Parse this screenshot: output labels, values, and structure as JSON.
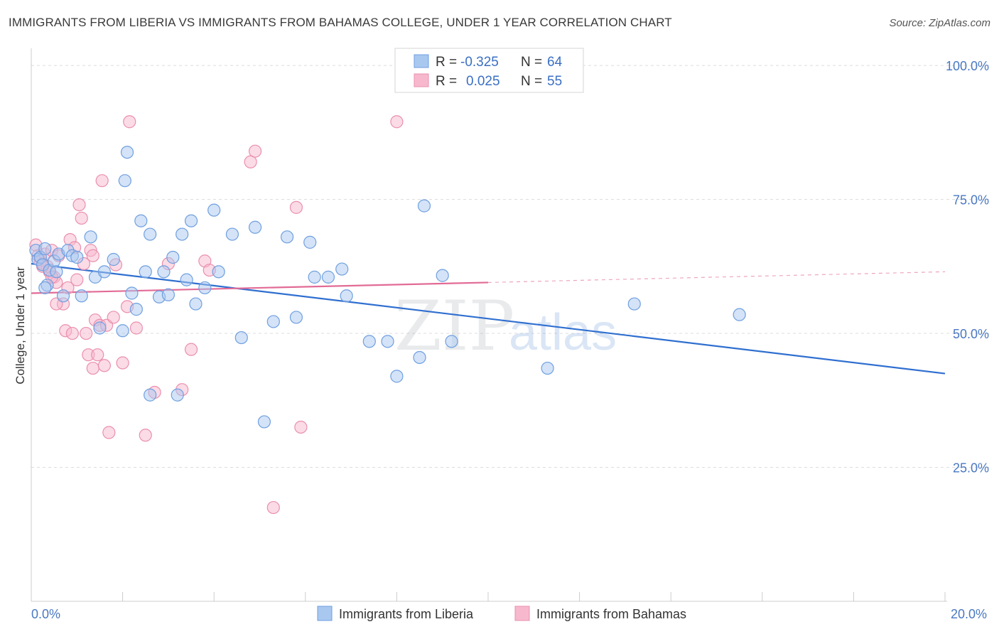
{
  "title": "IMMIGRANTS FROM LIBERIA VS IMMIGRANTS FROM BAHAMAS COLLEGE, UNDER 1 YEAR CORRELATION CHART",
  "source": "Source: ZipAtlas.com",
  "watermark": {
    "zip": "ZIP",
    "atlas": "atlas"
  },
  "colors": {
    "liberia_fill": "#a9c8f0",
    "liberia_stroke": "#6f9fe0",
    "liberia_line": "#2f6fd0",
    "bahamas_fill": "#f7b8cd",
    "bahamas_stroke": "#ea8fae",
    "bahamas_line": "#e26b96",
    "grid": "#dddddd",
    "axis_label": "#4a78c2"
  },
  "chart_data": {
    "type": "scatter",
    "title": "IMMIGRANTS FROM LIBERIA VS IMMIGRANTS FROM BAHAMAS COLLEGE, UNDER 1 YEAR CORRELATION CHART",
    "xlabel": "",
    "ylabel": "College, Under 1 year",
    "xlim": [
      0,
      20
    ],
    "ylim": [
      0,
      102
    ],
    "x_tick_labels": [
      "0.0%",
      "20.0%"
    ],
    "y_ticks": [
      25,
      50,
      75,
      100
    ],
    "y_tick_labels": [
      "25.0%",
      "50.0%",
      "75.0%",
      "100.0%"
    ],
    "legend": [
      {
        "r_label": "R =",
        "r_value": "-0.325",
        "n_label": "N =",
        "n_value": "64"
      },
      {
        "r_label": "R =",
        "r_value": "0.025",
        "n_label": "N =",
        "n_value": "55"
      }
    ],
    "series": [
      {
        "name": "Immigrants from Liberia",
        "trend": {
          "x0": 0,
          "y0": 63.0,
          "x1": 20,
          "y1": 42.5,
          "solid_until": 20
        },
        "points": [
          [
            0.1,
            65.5
          ],
          [
            0.15,
            63.8
          ],
          [
            0.2,
            64.2
          ],
          [
            0.25,
            62.8
          ],
          [
            0.3,
            65.8
          ],
          [
            0.35,
            59
          ],
          [
            0.4,
            61.8
          ],
          [
            0.5,
            63.5
          ],
          [
            0.55,
            61.5
          ],
          [
            0.6,
            64.8
          ],
          [
            0.7,
            57
          ],
          [
            0.8,
            65.5
          ],
          [
            0.9,
            64.5
          ],
          [
            1.0,
            64.2
          ],
          [
            1.1,
            57
          ],
          [
            1.3,
            68
          ],
          [
            1.4,
            60.5
          ],
          [
            1.5,
            51
          ],
          [
            1.6,
            61.5
          ],
          [
            1.8,
            63.8
          ],
          [
            2.0,
            50.5
          ],
          [
            2.05,
            78.5
          ],
          [
            2.1,
            83.8
          ],
          [
            2.2,
            57.5
          ],
          [
            2.3,
            54.5
          ],
          [
            2.4,
            71
          ],
          [
            2.5,
            61.5
          ],
          [
            2.6,
            68.5
          ],
          [
            2.6,
            38.5
          ],
          [
            2.8,
            56.8
          ],
          [
            2.9,
            61.5
          ],
          [
            3.0,
            57.2
          ],
          [
            3.1,
            64.2
          ],
          [
            3.2,
            38.5
          ],
          [
            3.3,
            68.5
          ],
          [
            3.4,
            60
          ],
          [
            3.5,
            71
          ],
          [
            3.6,
            55.5
          ],
          [
            3.8,
            58.5
          ],
          [
            4.0,
            73
          ],
          [
            4.1,
            61.5
          ],
          [
            4.4,
            68.5
          ],
          [
            4.6,
            49.2
          ],
          [
            4.9,
            69.8
          ],
          [
            5.1,
            33.5
          ],
          [
            5.3,
            52.2
          ],
          [
            5.6,
            68
          ],
          [
            5.8,
            53
          ],
          [
            6.1,
            67
          ],
          [
            6.2,
            60.5
          ],
          [
            6.5,
            60.5
          ],
          [
            6.8,
            62
          ],
          [
            6.9,
            57
          ],
          [
            7.4,
            48.5
          ],
          [
            7.8,
            48.5
          ],
          [
            8.0,
            42
          ],
          [
            8.5,
            45.5
          ],
          [
            8.6,
            73.8
          ],
          [
            9.0,
            60.8
          ],
          [
            9.2,
            48.5
          ],
          [
            11.3,
            43.5
          ],
          [
            13.2,
            55.5
          ],
          [
            15.5,
            53.5
          ],
          [
            0.3,
            58.5
          ]
        ]
      },
      {
        "name": "Immigrants from Bahamas",
        "trend": {
          "x0": 0,
          "y0": 57.5,
          "x1": 20,
          "y1": 61.5,
          "solid_until": 10
        },
        "points": [
          [
            0.1,
            66.5
          ],
          [
            0.15,
            64.5
          ],
          [
            0.2,
            63.5
          ],
          [
            0.25,
            63
          ],
          [
            0.3,
            64.8
          ],
          [
            0.35,
            62.5
          ],
          [
            0.4,
            61.5
          ],
          [
            0.45,
            65.5
          ],
          [
            0.5,
            60.5
          ],
          [
            0.55,
            59.5
          ],
          [
            0.6,
            64.5
          ],
          [
            0.7,
            55.5
          ],
          [
            0.75,
            50.5
          ],
          [
            0.8,
            58.5
          ],
          [
            0.85,
            67.5
          ],
          [
            0.9,
            50
          ],
          [
            0.95,
            66
          ],
          [
            1.0,
            60
          ],
          [
            1.05,
            74
          ],
          [
            1.1,
            71.5
          ],
          [
            1.15,
            63
          ],
          [
            1.2,
            50
          ],
          [
            1.25,
            46
          ],
          [
            1.3,
            65.5
          ],
          [
            1.35,
            43.5
          ],
          [
            1.4,
            52.5
          ],
          [
            1.45,
            46
          ],
          [
            1.5,
            51.5
          ],
          [
            1.55,
            78.5
          ],
          [
            1.6,
            44
          ],
          [
            1.65,
            51.5
          ],
          [
            1.7,
            31.5
          ],
          [
            1.8,
            53
          ],
          [
            2.0,
            44.5
          ],
          [
            2.1,
            55
          ],
          [
            2.15,
            89.5
          ],
          [
            2.3,
            51
          ],
          [
            2.5,
            31
          ],
          [
            2.7,
            39
          ],
          [
            3.0,
            63
          ],
          [
            3.3,
            39.5
          ],
          [
            3.5,
            47
          ],
          [
            3.8,
            63.5
          ],
          [
            3.9,
            61.8
          ],
          [
            4.8,
            82
          ],
          [
            4.9,
            84
          ],
          [
            5.3,
            17.5
          ],
          [
            5.8,
            73.5
          ],
          [
            5.9,
            32.5
          ],
          [
            8.0,
            89.5
          ],
          [
            0.55,
            55.5
          ],
          [
            1.35,
            64.5
          ],
          [
            1.85,
            62.8
          ],
          [
            0.25,
            62.5
          ],
          [
            0.45,
            60.5
          ]
        ]
      }
    ]
  }
}
